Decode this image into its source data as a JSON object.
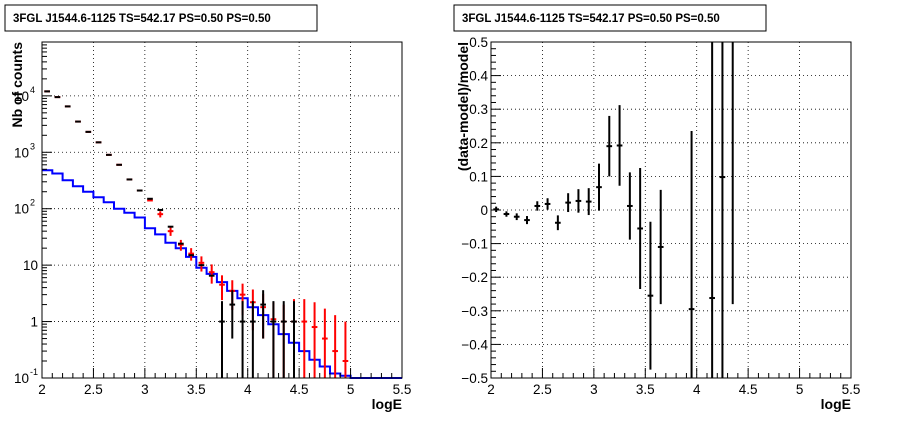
{
  "chart_data": [
    {
      "type": "histogram",
      "title": "3FGL J1544.6-1125 TS=542.17 PS=0.50 PS=0.50",
      "xlabel": "logE",
      "ylabel": "Nb of counts",
      "xlim": [
        2,
        5.5
      ],
      "ylim": [
        0.1,
        90000
      ],
      "log_y": true,
      "grid": true,
      "x_ticks": [
        "2",
        "2.5",
        "3",
        "3.5",
        "4",
        "4.5",
        "5",
        "5.5"
      ],
      "y_ticks": [
        {
          "value": 0.1,
          "base": "10",
          "exp": "-1"
        },
        {
          "value": 1,
          "base": "1",
          "exp": ""
        },
        {
          "value": 10,
          "base": "10",
          "exp": ""
        },
        {
          "value": 100,
          "base": "10",
          "exp": "2"
        },
        {
          "value": 1000,
          "base": "10",
          "exp": "3"
        },
        {
          "value": 10000,
          "base": "10",
          "exp": "4"
        }
      ],
      "bin_width": 0.1,
      "series": [
        {
          "color": "#0000ff",
          "style": "step",
          "x": [
            2.05,
            2.15,
            2.25,
            2.35,
            2.45,
            2.55,
            2.65,
            2.75,
            2.85,
            2.95,
            3.05,
            3.15,
            3.25,
            3.35,
            3.45,
            3.55,
            3.65,
            3.75,
            3.85,
            3.95,
            4.05,
            4.15,
            4.25,
            4.35,
            4.45,
            4.55,
            4.65,
            4.75,
            4.85,
            4.95,
            5.05,
            5.15,
            5.25,
            5.35,
            5.45
          ],
          "y": [
            480,
            420,
            320,
            250,
            200,
            160,
            130,
            100,
            85,
            70,
            45,
            35,
            25,
            20,
            14,
            9,
            7,
            5,
            3.5,
            2.6,
            1.8,
            1.3,
            0.9,
            0.6,
            0.42,
            0.3,
            0.21,
            0.16,
            0.12,
            0.11,
            0.1,
            0.1,
            0.1,
            0.1,
            0.1
          ]
        },
        {
          "color": "#ff0000",
          "style": "points",
          "x": [
            2.05,
            2.15,
            2.25,
            2.35,
            2.45,
            2.55,
            2.65,
            2.75,
            2.85,
            2.95,
            3.05,
            3.15,
            3.25,
            3.35,
            3.45,
            3.55,
            3.65,
            3.75,
            3.85,
            3.95,
            4.05,
            4.15,
            4.25,
            4.35,
            4.45,
            4.55,
            4.65,
            4.75,
            4.85,
            4.95
          ],
          "y": [
            12000,
            9500,
            6500,
            3500,
            2300,
            1500,
            900,
            600,
            330,
            210,
            140,
            80,
            40,
            23,
            16,
            11,
            7.5,
            4.5,
            3.5,
            3,
            2.2,
            1.8,
            1.1,
            1,
            1,
            1,
            0.8,
            0.5,
            0.3,
            0.2
          ],
          "err_low": [
            0,
            0,
            0,
            0,
            0,
            0,
            0,
            0,
            0,
            0,
            0,
            10,
            7,
            5,
            4,
            3.3,
            2.8,
            2.1,
            1.9,
            1.7,
            1.5,
            1.3,
            1.1,
            1.0,
            1.0,
            1.0,
            0.8,
            0.5,
            0.3,
            0.2
          ],
          "err_high": [
            0,
            0,
            0,
            0,
            0,
            0,
            0,
            0,
            0,
            0,
            0,
            10,
            7,
            5,
            4,
            3.3,
            2.8,
            2.1,
            1.9,
            1.7,
            1.5,
            1.3,
            1.1,
            1.0,
            1.5,
            1.5,
            1.4,
            1.2,
            1.0,
            0.8
          ]
        },
        {
          "color": "#000000",
          "style": "points",
          "x": [
            2.05,
            2.15,
            2.25,
            2.35,
            2.45,
            2.55,
            2.65,
            2.75,
            2.85,
            2.95,
            3.05,
            3.15,
            3.25,
            3.35,
            3.45,
            3.55,
            3.65,
            3.75,
            3.85,
            3.95,
            4.05,
            4.15,
            4.25,
            4.35,
            4.45
          ],
          "y": [
            12000,
            9500,
            6500,
            3500,
            2300,
            1500,
            900,
            600,
            330,
            210,
            150,
            95,
            48,
            24,
            15,
            10,
            6.5,
            1,
            2,
            1,
            1,
            2,
            1,
            1,
            1
          ],
          "err_low": [
            0,
            0,
            0,
            0,
            0,
            0,
            0,
            0,
            0,
            0,
            0,
            0,
            0,
            0,
            0,
            0,
            0,
            0.9,
            1.5,
            0.9,
            0.9,
            1.5,
            0.9,
            0.9,
            0.9
          ],
          "err_high": [
            0,
            0,
            0,
            0,
            0,
            0,
            0,
            0,
            0,
            0,
            0,
            0,
            0,
            0,
            0,
            0,
            0,
            1.3,
            1.6,
            1.3,
            1.3,
            1.6,
            1.3,
            1.3,
            1.3
          ]
        }
      ]
    },
    {
      "type": "scatter",
      "title": "3FGL J1544.6-1125 TS=542.17 PS=0.50 PS=0.50",
      "xlabel": "logE",
      "ylabel": "(data-model)/model",
      "xlim": [
        2,
        5.5
      ],
      "ylim": [
        -0.5,
        0.5
      ],
      "grid": true,
      "x_ticks": [
        "2",
        "2.5",
        "3",
        "3.5",
        "4",
        "4.5",
        "5",
        "5.5"
      ],
      "y_ticks": [
        "0.5",
        "0.4",
        "0.3",
        "0.2",
        "0.1",
        "0",
        "-0.1",
        "-0.2",
        "-0.3",
        "-0.4",
        "-0.5"
      ],
      "series": [
        {
          "color": "#000000",
          "x": [
            2.05,
            2.15,
            2.25,
            2.35,
            2.45,
            2.55,
            2.65,
            2.75,
            2.85,
            2.95,
            3.05,
            3.15,
            3.25,
            3.35,
            3.45,
            3.55,
            3.65,
            3.95,
            4.15,
            4.25,
            4.35
          ],
          "y": [
            0.002,
            -0.012,
            -0.02,
            -0.03,
            0.012,
            0.018,
            -0.038,
            0.022,
            0.027,
            0.025,
            0.068,
            0.19,
            0.192,
            0.012,
            -0.055,
            -0.255,
            -0.11,
            -0.295,
            -0.262,
            0.098,
            0.52
          ],
          "err": [
            0.008,
            0.008,
            0.01,
            0.012,
            0.014,
            0.017,
            0.022,
            0.028,
            0.035,
            0.04,
            0.07,
            0.09,
            0.12,
            0.1,
            0.18,
            0.22,
            0.17,
            0.53,
            0.8,
            0.8,
            0.8
          ]
        }
      ]
    }
  ]
}
